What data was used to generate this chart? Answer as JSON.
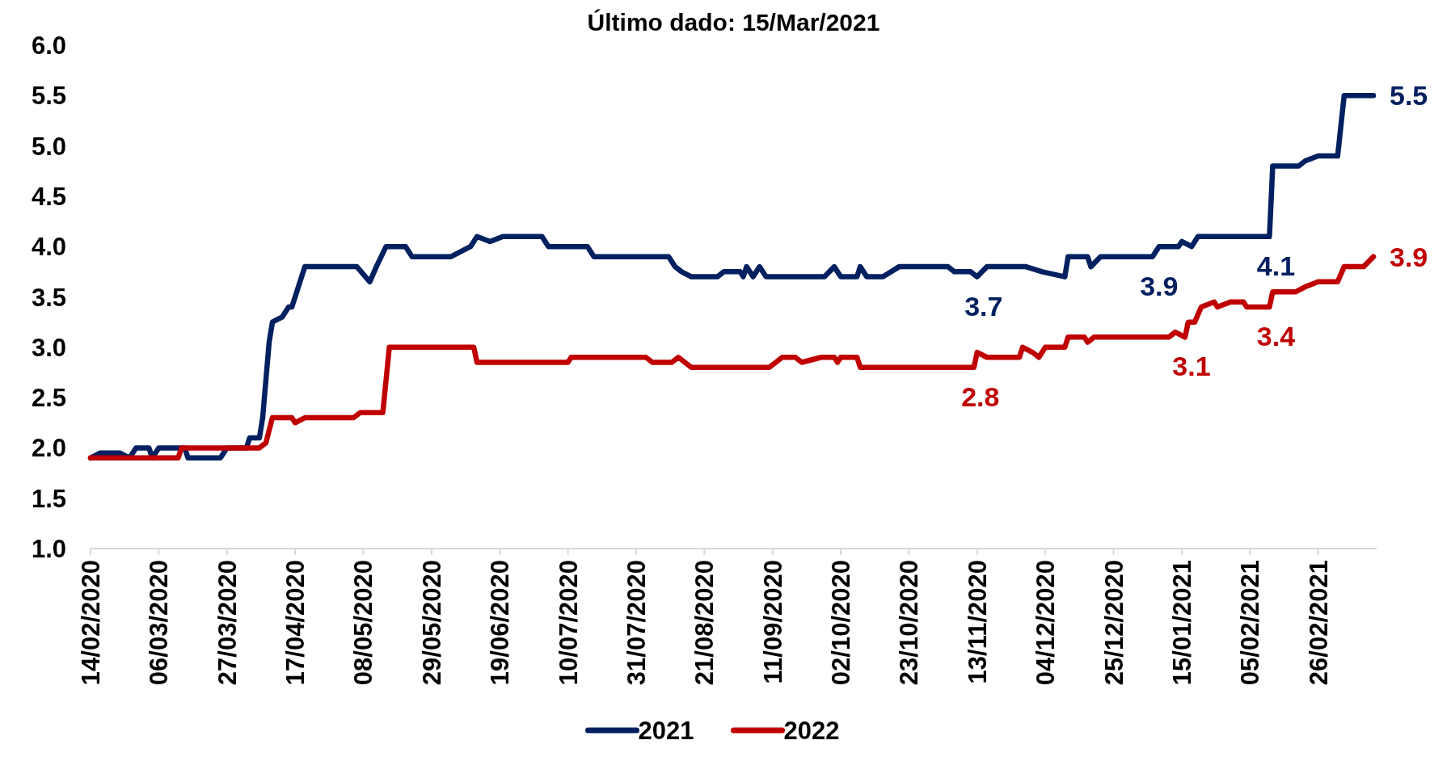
{
  "chart_data": {
    "type": "line",
    "title": "Último dado: 15/Mar/2021",
    "xlim": [
      "2020-02-14",
      "2021-03-16"
    ],
    "xticks": [
      {
        "value": "2020-02-14",
        "label": "14/02/2020"
      },
      {
        "value": "2020-03-06",
        "label": "06/03/2020"
      },
      {
        "value": "2020-03-27",
        "label": "27/03/2020"
      },
      {
        "value": "2020-04-17",
        "label": "17/04/2020"
      },
      {
        "value": "2020-05-08",
        "label": "08/05/2020"
      },
      {
        "value": "2020-05-29",
        "label": "29/05/2020"
      },
      {
        "value": "2020-06-19",
        "label": "19/06/2020"
      },
      {
        "value": "2020-07-10",
        "label": "10/07/2020"
      },
      {
        "value": "2020-07-31",
        "label": "31/07/2020"
      },
      {
        "value": "2020-08-21",
        "label": "21/08/2020"
      },
      {
        "value": "2020-09-11",
        "label": "11/09/2020"
      },
      {
        "value": "2020-10-02",
        "label": "02/10/2020"
      },
      {
        "value": "2020-10-23",
        "label": "23/10/2020"
      },
      {
        "value": "2020-11-13",
        "label": "13/11/2020"
      },
      {
        "value": "2020-12-04",
        "label": "04/12/2020"
      },
      {
        "value": "2020-12-25",
        "label": "25/12/2020"
      },
      {
        "value": "2021-01-15",
        "label": "15/01/2021"
      },
      {
        "value": "2021-02-05",
        "label": "05/02/2021"
      },
      {
        "value": "2021-02-26",
        "label": "26/02/2021"
      }
    ],
    "ylim": [
      1.0,
      6.0
    ],
    "yticks": [
      {
        "value": 1,
        "label": "1.0"
      },
      {
        "value": 1.5,
        "label": "1.5"
      },
      {
        "value": 2,
        "label": "2.0"
      },
      {
        "value": 2.5,
        "label": "2.5"
      },
      {
        "value": 3,
        "label": "3.0"
      },
      {
        "value": 3.5,
        "label": "3.5"
      },
      {
        "value": 4,
        "label": "4.0"
      },
      {
        "value": 4.5,
        "label": "4.5"
      },
      {
        "value": 5,
        "label": "5.0"
      },
      {
        "value": 5.5,
        "label": "5.5"
      },
      {
        "value": 6,
        "label": "6.0"
      }
    ],
    "grid": false,
    "legend": "bottom",
    "marker": "none",
    "line_style": "solid",
    "series": [
      {
        "name": "2021",
        "color": "#002060",
        "x": [
          "2020-02-14",
          "2020-02-17",
          "2020-02-23",
          "2020-02-26",
          "2020-02-28",
          "2020-03-03",
          "2020-03-04",
          "2020-03-06",
          "2020-03-14",
          "2020-03-15",
          "2020-03-20",
          "2020-03-23",
          "2020-03-25",
          "2020-03-27",
          "2020-04-02",
          "2020-04-03",
          "2020-04-06",
          "2020-04-07",
          "2020-04-09",
          "2020-04-10",
          "2020-04-13",
          "2020-04-15",
          "2020-04-16",
          "2020-04-20",
          "2020-05-06",
          "2020-05-10",
          "2020-05-12",
          "2020-05-15",
          "2020-05-21",
          "2020-05-23",
          "2020-06-04",
          "2020-06-10",
          "2020-06-12",
          "2020-06-16",
          "2020-06-20",
          "2020-07-02",
          "2020-07-04",
          "2020-07-16",
          "2020-07-18",
          "2020-08-10",
          "2020-08-12",
          "2020-08-14",
          "2020-08-17",
          "2020-08-25",
          "2020-08-27",
          "2020-09-01",
          "2020-09-02",
          "2020-09-03",
          "2020-09-05",
          "2020-09-07",
          "2020-09-09",
          "2020-09-27",
          "2020-09-30",
          "2020-10-02",
          "2020-10-07",
          "2020-10-08",
          "2020-10-10",
          "2020-10-15",
          "2020-10-20",
          "2020-11-04",
          "2020-11-06",
          "2020-11-11",
          "2020-11-13",
          "2020-11-16",
          "2020-11-28",
          "2020-12-03",
          "2020-12-10",
          "2020-12-11",
          "2020-12-17",
          "2020-12-18",
          "2020-12-21",
          "2021-01-06",
          "2021-01-08",
          "2021-01-14",
          "2021-01-15",
          "2021-01-18",
          "2021-01-20",
          "2021-02-11",
          "2021-02-12",
          "2021-02-20",
          "2021-02-22",
          "2021-02-26",
          "2021-03-04",
          "2021-03-06",
          "2021-03-15"
        ],
        "values": [
          1.9,
          1.95,
          1.95,
          1.9,
          2.0,
          2.0,
          1.9,
          2.0,
          2.0,
          1.9,
          1.9,
          1.9,
          1.9,
          2.0,
          2.0,
          2.1,
          2.1,
          2.3,
          3.05,
          3.25,
          3.3,
          3.4,
          3.4,
          3.8,
          3.8,
          3.65,
          3.8,
          4.0,
          4.0,
          3.9,
          3.9,
          4.0,
          4.1,
          4.05,
          4.1,
          4.1,
          4.0,
          4.0,
          3.9,
          3.9,
          3.8,
          3.75,
          3.7,
          3.7,
          3.75,
          3.75,
          3.7,
          3.8,
          3.7,
          3.8,
          3.7,
          3.7,
          3.8,
          3.7,
          3.7,
          3.8,
          3.7,
          3.7,
          3.8,
          3.8,
          3.75,
          3.75,
          3.7,
          3.8,
          3.8,
          3.75,
          3.7,
          3.9,
          3.9,
          3.8,
          3.9,
          3.9,
          4.0,
          4.0,
          4.05,
          4.0,
          4.1,
          4.1,
          4.8,
          4.8,
          4.85,
          4.9,
          4.9,
          5.5,
          5.5
        ],
        "value_labels": [
          null,
          null,
          null,
          null,
          null,
          null,
          null,
          null,
          null,
          null,
          null,
          null,
          null,
          null,
          null,
          null,
          null,
          null,
          null,
          null,
          null,
          null,
          null,
          null,
          null,
          null,
          null,
          null,
          null,
          null,
          null,
          null,
          null,
          null,
          null,
          null,
          null,
          null,
          null,
          null,
          null,
          null,
          null,
          null,
          null,
          null,
          null,
          null,
          null,
          null,
          null,
          null,
          null,
          null,
          null,
          null,
          null,
          null,
          null,
          null,
          null,
          null,
          "3.7",
          null,
          null,
          null,
          null,
          null,
          null,
          null,
          null,
          "3.9",
          null,
          null,
          null,
          null,
          null,
          "4.1",
          null,
          null,
          null,
          null,
          null,
          null,
          "5.5"
        ]
      },
      {
        "name": "2022",
        "color": "#c00000",
        "x": [
          "2020-02-14",
          "2020-03-12",
          "2020-03-13",
          "2020-04-06",
          "2020-04-08",
          "2020-04-10",
          "2020-04-16",
          "2020-04-17",
          "2020-04-20",
          "2020-05-05",
          "2020-05-07",
          "2020-05-14",
          "2020-05-16",
          "2020-06-11",
          "2020-06-12",
          "2020-07-10",
          "2020-07-11",
          "2020-08-03",
          "2020-08-05",
          "2020-08-11",
          "2020-08-13",
          "2020-08-15",
          "2020-08-17",
          "2020-09-10",
          "2020-09-14",
          "2020-09-18",
          "2020-09-20",
          "2020-09-26",
          "2020-09-30",
          "2020-10-01",
          "2020-10-02",
          "2020-10-07",
          "2020-10-08",
          "2020-11-12",
          "2020-11-13",
          "2020-11-16",
          "2020-11-26",
          "2020-11-27",
          "2020-11-30",
          "2020-12-02",
          "2020-12-04",
          "2020-12-10",
          "2020-12-11",
          "2020-12-16",
          "2020-12-17",
          "2020-12-19",
          "2021-01-11",
          "2021-01-13",
          "2021-01-16",
          "2021-01-17",
          "2021-01-19",
          "2021-01-21",
          "2021-01-25",
          "2021-01-26",
          "2021-01-30",
          "2021-02-03",
          "2021-02-04",
          "2021-02-11",
          "2021-02-12",
          "2021-02-19",
          "2021-02-22",
          "2021-02-26",
          "2021-03-04",
          "2021-03-06",
          "2021-03-12",
          "2021-03-15"
        ],
        "values": [
          1.9,
          1.9,
          2.0,
          2.0,
          2.05,
          2.3,
          2.3,
          2.25,
          2.3,
          2.3,
          2.35,
          2.35,
          3.0,
          3.0,
          2.85,
          2.85,
          2.9,
          2.9,
          2.85,
          2.85,
          2.9,
          2.85,
          2.8,
          2.8,
          2.9,
          2.9,
          2.85,
          2.9,
          2.9,
          2.85,
          2.9,
          2.9,
          2.8,
          2.8,
          2.95,
          2.9,
          2.9,
          3.0,
          2.95,
          2.9,
          3.0,
          3.0,
          3.1,
          3.1,
          3.05,
          3.1,
          3.1,
          3.15,
          3.1,
          3.25,
          3.25,
          3.4,
          3.45,
          3.4,
          3.45,
          3.45,
          3.4,
          3.4,
          3.55,
          3.55,
          3.6,
          3.65,
          3.65,
          3.8,
          3.8,
          3.9
        ],
        "value_labels": [
          null,
          null,
          null,
          null,
          null,
          null,
          null,
          null,
          null,
          null,
          null,
          null,
          null,
          null,
          null,
          null,
          null,
          null,
          null,
          null,
          null,
          null,
          null,
          null,
          null,
          null,
          null,
          null,
          null,
          null,
          null,
          null,
          null,
          "2.8",
          null,
          null,
          null,
          null,
          null,
          null,
          null,
          null,
          null,
          null,
          null,
          null,
          null,
          null,
          "3.1",
          null,
          null,
          null,
          null,
          null,
          null,
          null,
          null,
          "3.4",
          null,
          null,
          null,
          null,
          null,
          null,
          null,
          "3.9"
        ]
      }
    ]
  }
}
